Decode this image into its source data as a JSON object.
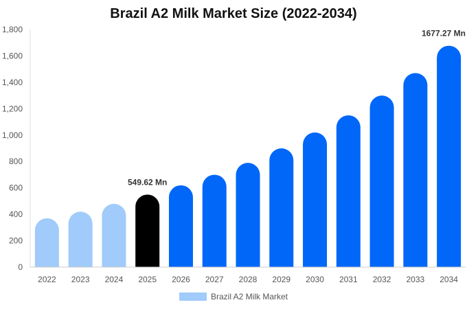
{
  "chart_data": {
    "type": "bar",
    "title": "Brazil A2 Milk Market Size (2022-2034)",
    "xlabel": "",
    "ylabel": "",
    "categories": [
      "2022",
      "2023",
      "2024",
      "2025",
      "2026",
      "2027",
      "2028",
      "2029",
      "2030",
      "2031",
      "2032",
      "2033",
      "2034"
    ],
    "series": [
      {
        "name": "Brazil A2 Milk Market",
        "values": [
          370,
          420,
          480,
          549.62,
          620,
          700,
          790,
          900,
          1020,
          1150,
          1300,
          1470,
          1677.27
        ]
      }
    ],
    "ylim": [
      0,
      1800
    ],
    "yticks": [
      "0",
      "200",
      "400",
      "600",
      "800",
      "1,000",
      "1,200",
      "1,400",
      "1,600",
      "1,800"
    ],
    "data_labels": [
      {
        "category": "2025",
        "text": "549.62 Mn"
      },
      {
        "category": "2034",
        "text": "1677.27 Mn"
      }
    ],
    "colors": {
      "historical": "#a0cbfa",
      "current": "#000000",
      "forecast": "#0067f8",
      "legend": "#a0cbfa"
    },
    "grid": false,
    "legend_position": "bottom-center"
  }
}
